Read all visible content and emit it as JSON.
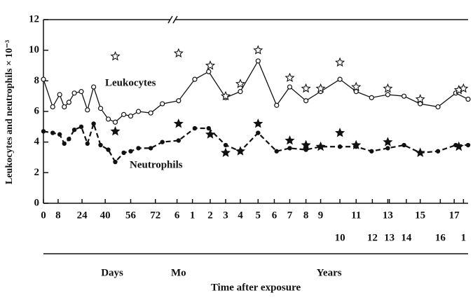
{
  "chart_data": {
    "type": "line",
    "y_label": "Leukocytes and neutrophils × 10⁻³",
    "x_label": "Time after exposure",
    "ylim": [
      0,
      12
    ],
    "yticks": [
      0,
      2,
      4,
      6,
      8,
      10,
      12
    ],
    "xlim": [
      0,
      55
    ],
    "xticks": [
      {
        "value": 0,
        "label": "0"
      },
      {
        "value": 1.9,
        "label": "8"
      },
      {
        "value": 5,
        "label": "24"
      },
      {
        "value": 8,
        "label": "40"
      },
      {
        "value": 11.3,
        "label": "56"
      },
      {
        "value": 14.5,
        "label": "72"
      },
      {
        "value": 17.3,
        "label": "6"
      },
      {
        "value": 19.3,
        "label": "1"
      },
      {
        "value": 21.6,
        "label": "2"
      },
      {
        "value": 23.6,
        "label": "3"
      },
      {
        "value": 25.5,
        "label": "4"
      },
      {
        "value": 27.8,
        "label": "5"
      },
      {
        "value": 29.9,
        "label": "6"
      },
      {
        "value": 31.9,
        "label": "7"
      },
      {
        "value": 34,
        "label": "8"
      },
      {
        "value": 35.9,
        "label": "9"
      },
      {
        "value": 40.5,
        "label": "11"
      },
      {
        "value": 44.6,
        "label": "13"
      },
      {
        "value": 48.8,
        "label": "15"
      },
      {
        "value": 53.2,
        "label": "17"
      }
    ],
    "xticks_row2": [
      {
        "value": 38.4,
        "label": "10"
      },
      {
        "value": 42.6,
        "label": "12"
      },
      {
        "value": 44.8,
        "label": "13"
      },
      {
        "value": 47,
        "label": "14"
      },
      {
        "value": 51.4,
        "label": "16"
      },
      {
        "value": 54.4,
        "label": "1"
      }
    ],
    "periods": [
      {
        "value": 8.9,
        "label": "Days"
      },
      {
        "value": 17.5,
        "label": "Mo"
      },
      {
        "value": 37,
        "label": "Years"
      }
    ],
    "series": [
      {
        "name": "Leukocytes",
        "style": "solid",
        "marker": "open-circle",
        "x": [
          0,
          1.2,
          2.1,
          2.7,
          3.3,
          4.0,
          4.9,
          5.7,
          6.5,
          7.4,
          8.4,
          9.3,
          10.4,
          11.3,
          12.3,
          13.9,
          15.4,
          17.5,
          19.6,
          21.4,
          23.6,
          25.5,
          27.8,
          30.2,
          31.9,
          34.0,
          35.9,
          38.4,
          40.5,
          42.5,
          44.6,
          46.7,
          48.8,
          51.1,
          53.4,
          55
        ],
        "values": [
          8.1,
          6.3,
          7.1,
          6.3,
          6.6,
          7.2,
          7.3,
          6.1,
          7.6,
          6.2,
          5.5,
          5.3,
          5.8,
          5.7,
          6.0,
          5.9,
          6.5,
          6.7,
          8.1,
          8.6,
          6.9,
          7.3,
          9.3,
          6.4,
          7.6,
          6.7,
          7.3,
          8.1,
          7.3,
          6.9,
          7.1,
          7.0,
          6.5,
          6.3,
          7.2,
          6.8
        ]
      },
      {
        "name": "Neutrophils",
        "style": "dashed",
        "marker": "filled-circle",
        "x": [
          0,
          1.2,
          2.1,
          2.7,
          3.3,
          4.0,
          4.9,
          5.7,
          6.5,
          7.4,
          8.4,
          9.3,
          10.4,
          11.3,
          12.3,
          13.9,
          15.4,
          17.5,
          19.6,
          21.4,
          23.6,
          25.5,
          27.8,
          30.2,
          31.9,
          34.0,
          35.9,
          38.4,
          40.5,
          42.5,
          44.6,
          46.7,
          48.8,
          51.1,
          53.4,
          55
        ],
        "values": [
          4.7,
          4.6,
          4.5,
          3.9,
          4.2,
          4.8,
          5.0,
          3.9,
          5.2,
          3.8,
          3.5,
          2.7,
          3.3,
          3.4,
          3.6,
          3.6,
          4.0,
          4.1,
          4.9,
          4.9,
          3.8,
          3.4,
          4.6,
          3.4,
          3.6,
          3.5,
          3.7,
          3.7,
          3.7,
          3.4,
          3.6,
          3.8,
          3.3,
          3.4,
          3.8,
          3.8
        ]
      },
      {
        "style": "none",
        "marker": "open-star",
        "x": [
          9.3,
          17.5,
          21.6,
          23.6,
          25.5,
          27.8,
          31.9,
          34,
          35.9,
          38.4,
          40.5,
          44.6,
          48.8,
          53.8,
          54.4
        ],
        "values": [
          9.6,
          9.8,
          9.0,
          7.0,
          7.8,
          10.0,
          8.2,
          7.5,
          7.5,
          9.2,
          7.6,
          7.5,
          6.8,
          7.4,
          7.5
        ]
      },
      {
        "style": "none",
        "marker": "filled-star",
        "x": [
          9.3,
          17.5,
          21.6,
          23.6,
          25.5,
          27.8,
          31.9,
          34,
          35.9,
          38.4,
          40.5,
          44.6,
          48.8,
          53.8
        ],
        "values": [
          4.7,
          5.2,
          4.5,
          3.3,
          3.4,
          5.2,
          4.1,
          3.8,
          3.7,
          4.6,
          3.8,
          4.0,
          3.3,
          3.7
        ]
      }
    ]
  }
}
